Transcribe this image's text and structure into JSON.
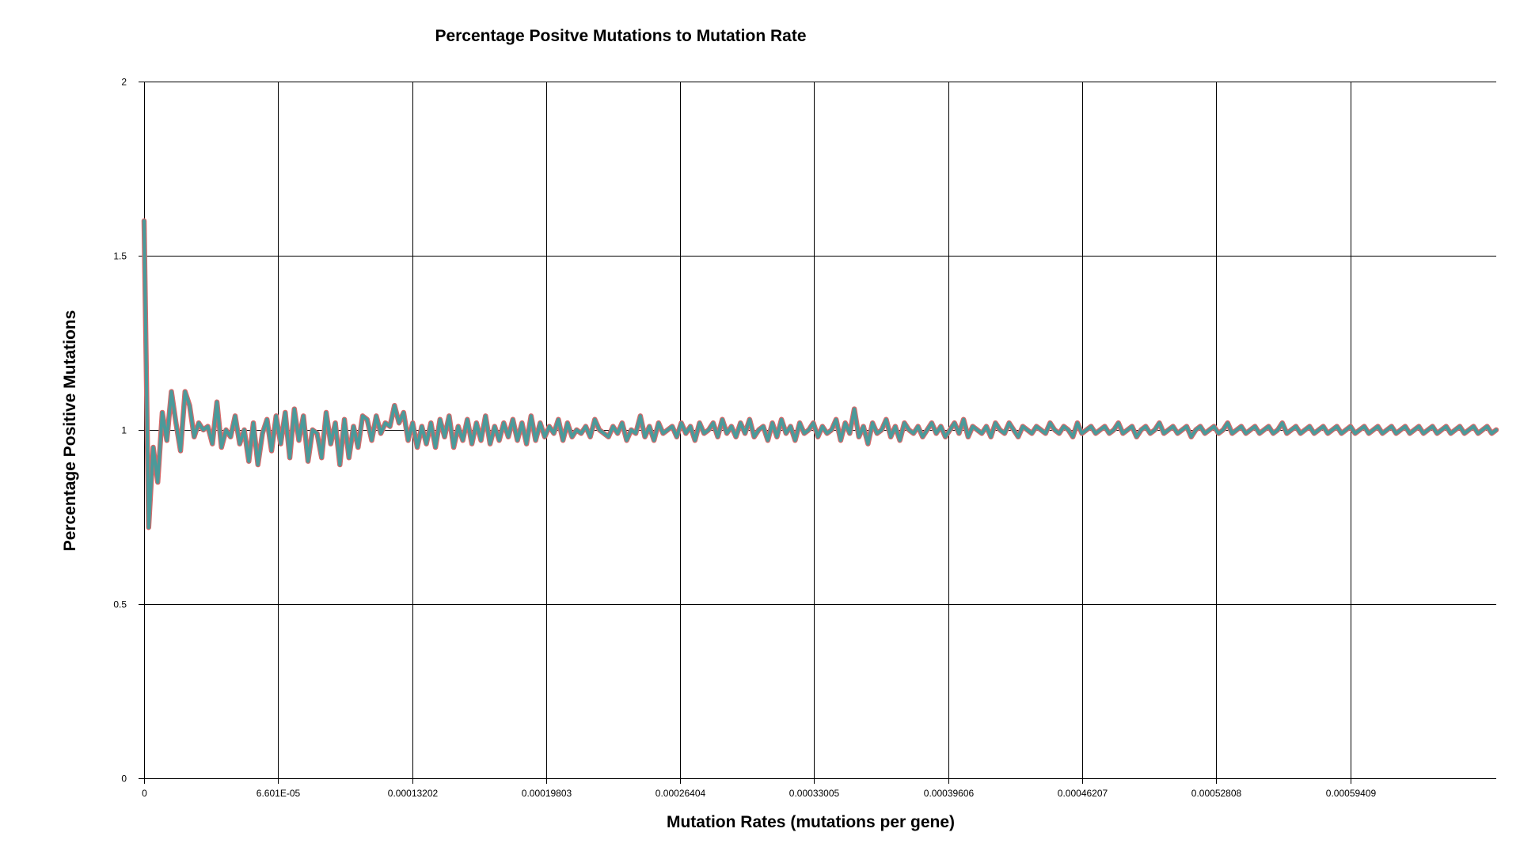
{
  "chart_data": {
    "type": "line",
    "title": "Percentage Positve Mutations to Mutation Rate",
    "xlabel": "Mutation Rates (mutations per gene)",
    "ylabel": "Percentage Positive Mutations",
    "xlim": [
      0,
      0.000666
    ],
    "ylim": [
      0,
      2
    ],
    "x_ticks": [
      {
        "value": 0,
        "label": "0"
      },
      {
        "value": 6.601e-05,
        "label": "6.601E-05"
      },
      {
        "value": 0.00013202,
        "label": "0.00013202"
      },
      {
        "value": 0.00019803,
        "label": "0.00019803"
      },
      {
        "value": 0.00026404,
        "label": "0.00026404"
      },
      {
        "value": 0.00033005,
        "label": "0.00033005"
      },
      {
        "value": 0.00039606,
        "label": "0.00039606"
      },
      {
        "value": 0.00046207,
        "label": "0.00046207"
      },
      {
        "value": 0.00052808,
        "label": "0.00052808"
      },
      {
        "value": 0.00059409,
        "label": "0.00059409"
      }
    ],
    "y_ticks": [
      {
        "value": 0,
        "label": "0"
      },
      {
        "value": 0.5,
        "label": "0.5"
      },
      {
        "value": 1,
        "label": "1"
      },
      {
        "value": 1.5,
        "label": "1.5"
      },
      {
        "value": 2,
        "label": "2"
      }
    ],
    "grid": true,
    "legend": "none",
    "series": [
      {
        "name": "Percentage Positive Mutations",
        "color": "#4a9a9a",
        "outline_color": "#d46a6a",
        "x_start": 0,
        "x_step": 1e-06,
        "values": [
          1.6,
          0.72,
          0.95,
          0.85,
          1.05,
          0.97,
          1.11,
          1.02,
          0.94,
          1.11,
          1.07,
          0.98,
          1.02,
          1.0,
          1.01,
          0.96,
          1.08,
          0.95,
          1.0,
          0.98,
          1.04,
          0.96,
          1.0,
          0.91,
          1.02,
          0.9,
          0.99,
          1.03,
          0.94,
          1.04,
          0.96,
          1.05,
          0.92,
          1.06,
          0.97,
          1.04,
          0.91,
          1.0,
          0.99,
          0.92,
          1.05,
          0.96,
          1.02,
          0.9,
          1.03,
          0.92,
          1.01,
          0.95,
          1.04,
          1.03,
          0.97,
          1.04,
          0.99,
          1.02,
          1.01,
          1.07,
          1.02,
          1.05,
          0.97,
          1.02,
          0.95,
          1.01,
          0.96,
          1.02,
          0.95,
          1.03,
          0.98,
          1.04,
          0.95,
          1.01,
          0.97,
          1.03,
          0.96,
          1.02,
          0.97,
          1.04,
          0.96,
          1.01,
          0.97,
          1.02,
          0.98,
          1.03,
          0.97,
          1.02,
          0.96,
          1.04,
          0.97,
          1.02,
          0.98,
          1.01,
          0.99,
          1.03,
          0.97,
          1.02,
          0.98,
          1.0,
          0.99,
          1.01,
          0.98,
          1.03,
          1.0,
          0.99,
          0.98,
          1.01,
          0.99,
          1.02,
          0.97,
          1.0,
          0.99,
          1.04,
          0.98,
          1.01,
          0.97,
          1.02,
          0.99,
          1.0,
          1.01,
          0.98,
          1.02,
          0.99,
          1.01,
          0.97,
          1.02,
          0.99,
          1.0,
          1.02,
          0.98,
          1.03,
          0.99,
          1.01,
          0.98,
          1.02,
          0.99,
          1.03,
          0.98,
          1.0,
          1.01,
          0.97,
          1.02,
          0.98,
          1.03,
          0.99,
          1.01,
          0.97,
          1.02,
          0.99,
          1.0,
          1.02,
          0.98,
          1.01,
          0.99,
          1.0,
          1.03,
          0.97,
          1.02,
          0.99,
          1.06,
          0.98,
          1.01,
          0.96,
          1.02,
          0.99,
          1.0,
          1.03,
          0.98,
          1.01,
          0.97,
          1.02,
          1.0,
          0.99,
          1.01,
          0.98,
          1.0,
          1.02,
          0.99,
          1.01,
          0.98,
          1.0,
          1.02,
          0.99,
          1.03,
          0.98,
          1.01,
          1.0,
          0.99,
          1.01,
          0.98,
          1.02,
          1.0,
          0.99,
          1.02,
          1.0,
          0.98,
          1.01,
          1.0,
          0.99,
          1.01,
          1.0,
          0.99,
          1.02,
          1.0,
          0.99,
          1.01,
          1.0,
          0.98,
          1.02,
          0.99,
          1.0,
          1.01,
          0.99,
          1.0,
          1.01,
          0.99,
          1.0,
          1.02,
          0.99,
          1.0,
          1.01,
          0.98,
          1.0,
          1.01,
          0.99,
          1.0,
          1.02,
          0.99,
          1.0,
          1.01,
          0.99,
          1.0,
          1.01,
          0.98,
          1.0,
          1.01,
          0.99,
          1.0,
          1.01,
          0.99,
          1.0,
          1.02,
          0.99,
          1.0,
          1.01,
          0.99,
          1.0,
          1.01,
          0.99,
          1.0,
          1.01,
          0.99,
          1.0,
          1.02,
          0.99,
          1.0,
          1.01,
          0.99,
          1.0,
          1.01,
          0.99,
          1.0,
          1.01,
          0.99,
          1.0,
          1.01,
          0.99,
          1.0,
          1.01,
          0.99,
          1.0,
          1.01,
          0.99,
          1.0,
          1.01,
          0.99,
          1.0,
          1.01,
          0.99,
          1.0,
          1.01,
          0.99,
          1.0,
          1.01,
          0.99,
          1.0,
          1.01,
          0.99,
          1.0,
          1.01,
          0.99,
          1.0,
          1.01,
          0.99,
          1.0,
          1.01,
          0.99,
          1.0,
          1.01,
          0.99,
          1.0
        ]
      }
    ]
  }
}
